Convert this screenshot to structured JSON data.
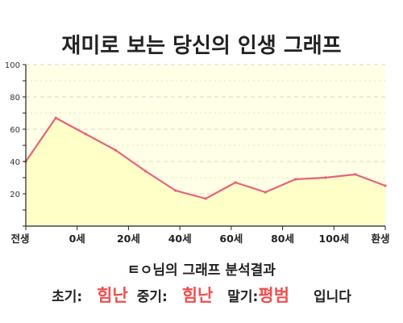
{
  "title": "재미로 보는 당신의 인생 그래프",
  "chart_data": {
    "type": "area",
    "title": "재미로 보는 당신의 인생 그래프",
    "x_tick_labels": [
      "전생",
      "0세",
      "20세",
      "40세",
      "60세",
      "80세",
      "100세",
      "환생"
    ],
    "y_ticks": [
      20,
      40,
      60,
      80,
      100
    ],
    "ylim": [
      0,
      100
    ],
    "grid": true,
    "series": [
      {
        "x": [
          "전생",
          "0세",
          "10세",
          "20세",
          "30세",
          "40세",
          "50세",
          "60세",
          "70세",
          "80세",
          "90세",
          "100세",
          "환생"
        ],
        "values": [
          40,
          67,
          57,
          47,
          34,
          22,
          17,
          27,
          21,
          29,
          30,
          32,
          25
        ]
      }
    ],
    "colors": {
      "line": "#e8627a",
      "fill": "#ffffc8",
      "plot_bg": "#ffffe6",
      "grid": "#e6cfcf"
    }
  },
  "summary": {
    "heading": "ㅌㅇ님의 그래프 분석결과",
    "early_label": "초기:",
    "early_value": "힘난",
    "middle_label": "중기:",
    "middle_value": "힘난",
    "late_label": "말기:",
    "late_value": "평범",
    "suffix": "입니다"
  }
}
